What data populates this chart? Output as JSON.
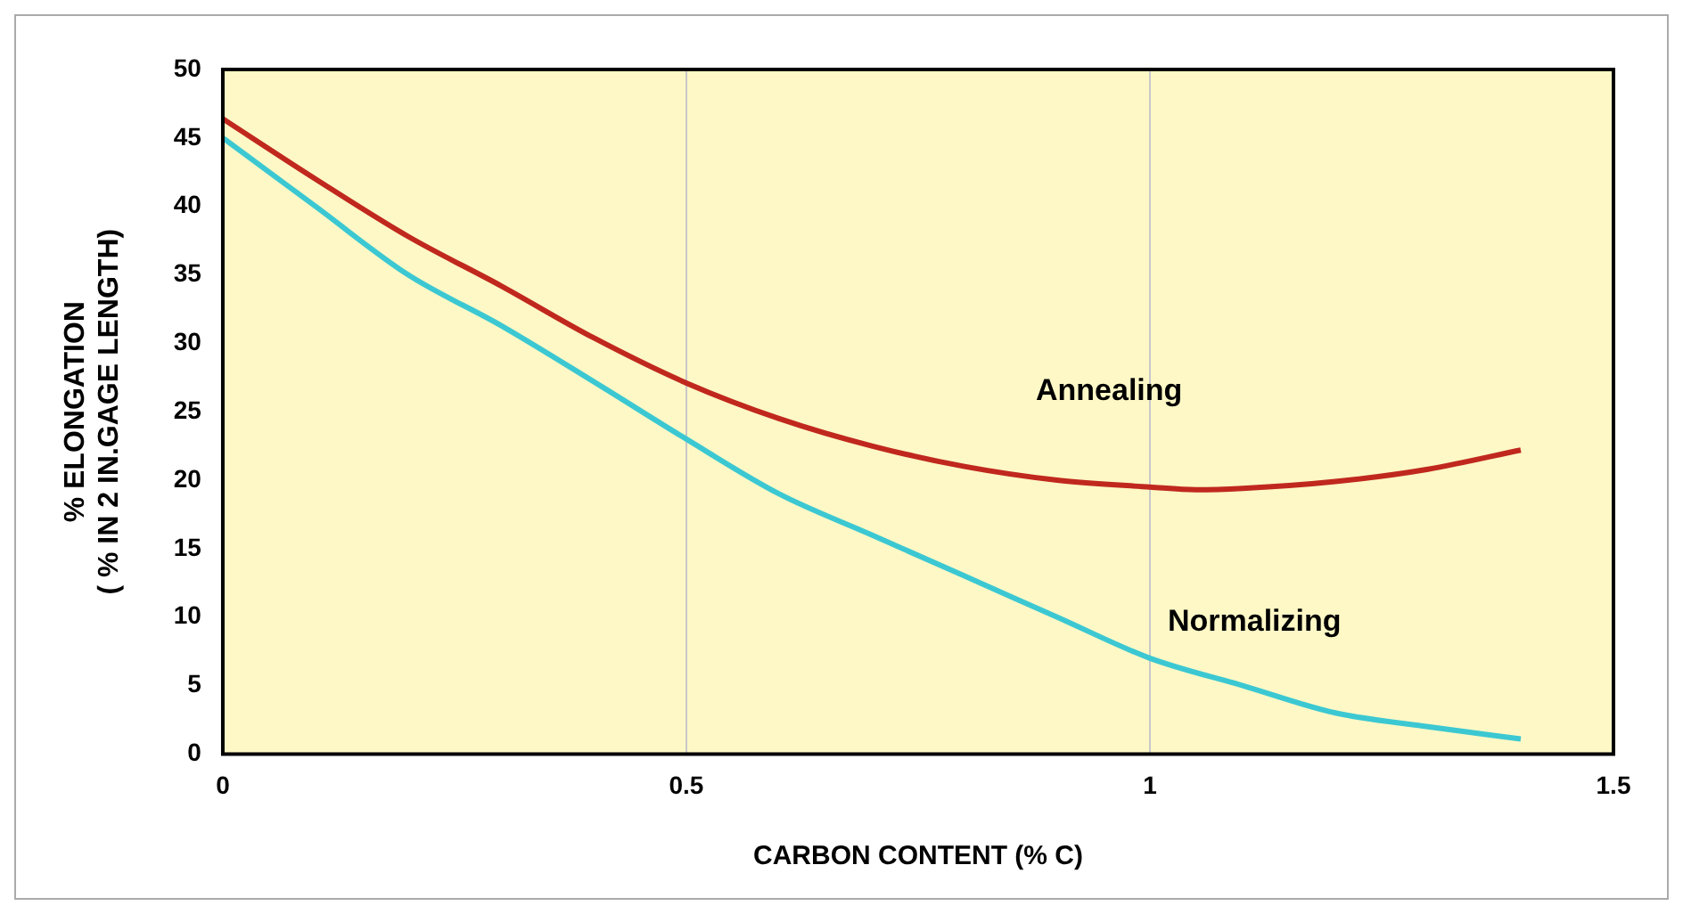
{
  "chart_data": {
    "type": "line",
    "xlabel": "CARBON CONTENT (% C)",
    "ylabel": "% ELONGATION\n( % IN 2 IN.GAGE LENGTH)",
    "xlim": [
      0,
      1.5
    ],
    "xticks": [
      0,
      0.5,
      1,
      1.5
    ],
    "ylim": [
      0,
      50
    ],
    "yticks": [
      0,
      5,
      10,
      15,
      20,
      25,
      30,
      35,
      40,
      45,
      50
    ],
    "grid": "x",
    "legend": false,
    "marker": "none",
    "line_style": "solid",
    "series": [
      {
        "name": "Annealing",
        "color": "#c0281e",
        "x": [
          0,
          0.1,
          0.2,
          0.3,
          0.4,
          0.5,
          0.6,
          0.7,
          0.8,
          0.9,
          1.0,
          1.05,
          1.1,
          1.2,
          1.3,
          1.4
        ],
        "values": [
          46.4,
          42,
          37.8,
          34.2,
          30.4,
          27.1,
          24.5,
          22.5,
          21,
          20,
          19.5,
          19.3,
          19.4,
          19.9,
          20.8,
          22.2
        ]
      },
      {
        "name": "Normalizing",
        "color": "#3cc8d2",
        "x": [
          0,
          0.1,
          0.2,
          0.3,
          0.4,
          0.5,
          0.6,
          0.7,
          0.8,
          0.9,
          1.0,
          1.1,
          1.2,
          1.3,
          1.4
        ],
        "values": [
          45,
          40,
          35,
          31.3,
          27.2,
          23,
          19,
          16,
          13,
          10,
          7,
          5,
          3,
          2,
          1.1
        ]
      }
    ]
  }
}
